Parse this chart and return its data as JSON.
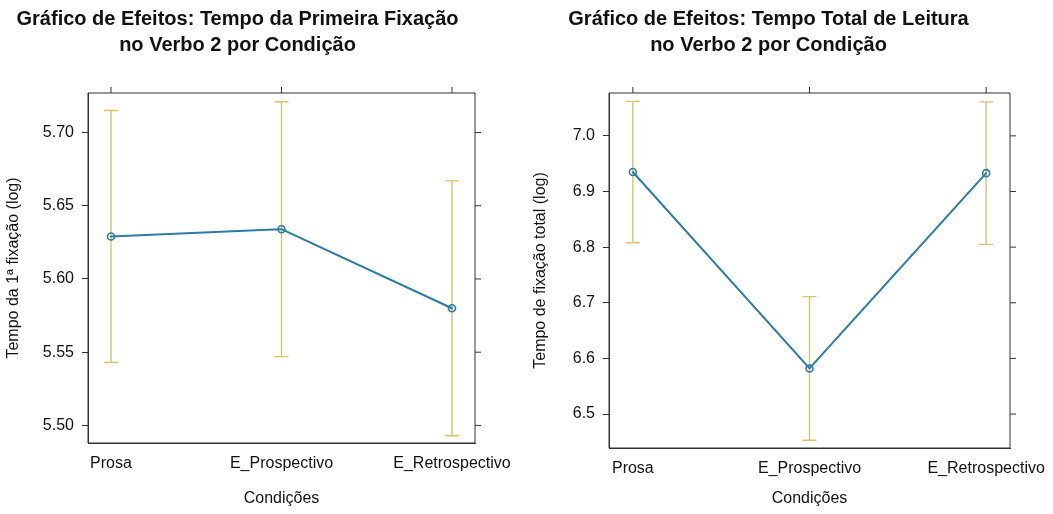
{
  "chart_data": [
    {
      "type": "line",
      "title": "Gráfico de Efeitos: Tempo da Primeira Fixação\nno Verbo 2 por Condição",
      "xlabel": "Condições",
      "ylabel": "Tempo da 1ª fixação (log)",
      "categories": [
        "Prosa",
        "E_Prospectivo",
        "E_Retrospectivo"
      ],
      "values": [
        5.629,
        5.634,
        5.58
      ],
      "errors": [
        0.086,
        0.087,
        0.087
      ],
      "color": "#2b7ca8",
      "marker": "circle",
      "line_style": "solid",
      "ylim": [
        5.488,
        5.727
      ],
      "yticks": [
        {
          "value": 5.5,
          "label": "5.50"
        },
        {
          "value": 5.55,
          "label": "5.55"
        },
        {
          "value": 5.6,
          "label": "5.60"
        },
        {
          "value": 5.65,
          "label": "5.65"
        },
        {
          "value": 5.7,
          "label": "5.70"
        }
      ]
    },
    {
      "type": "line",
      "title": "Gráfico de Efeitos: Tempo Total de Leitura\nno Verbo 2 por Condição",
      "xlabel": "Condições",
      "ylabel": "Tempo de fixação total (log)",
      "categories": [
        "Prosa",
        "E_Prospectivo",
        "E_Retrospectivo"
      ],
      "values": [
        6.935,
        6.582,
        6.933
      ],
      "errors": [
        0.127,
        0.129,
        0.128
      ],
      "color": "#2b7ca8",
      "marker": "circle",
      "line_style": "solid",
      "ylim": [
        6.439,
        7.077
      ],
      "yticks": [
        6.5,
        6.6,
        6.7,
        6.8,
        6.9,
        {
          "value": 7.0,
          "label": "7.0"
        }
      ]
    }
  ]
}
